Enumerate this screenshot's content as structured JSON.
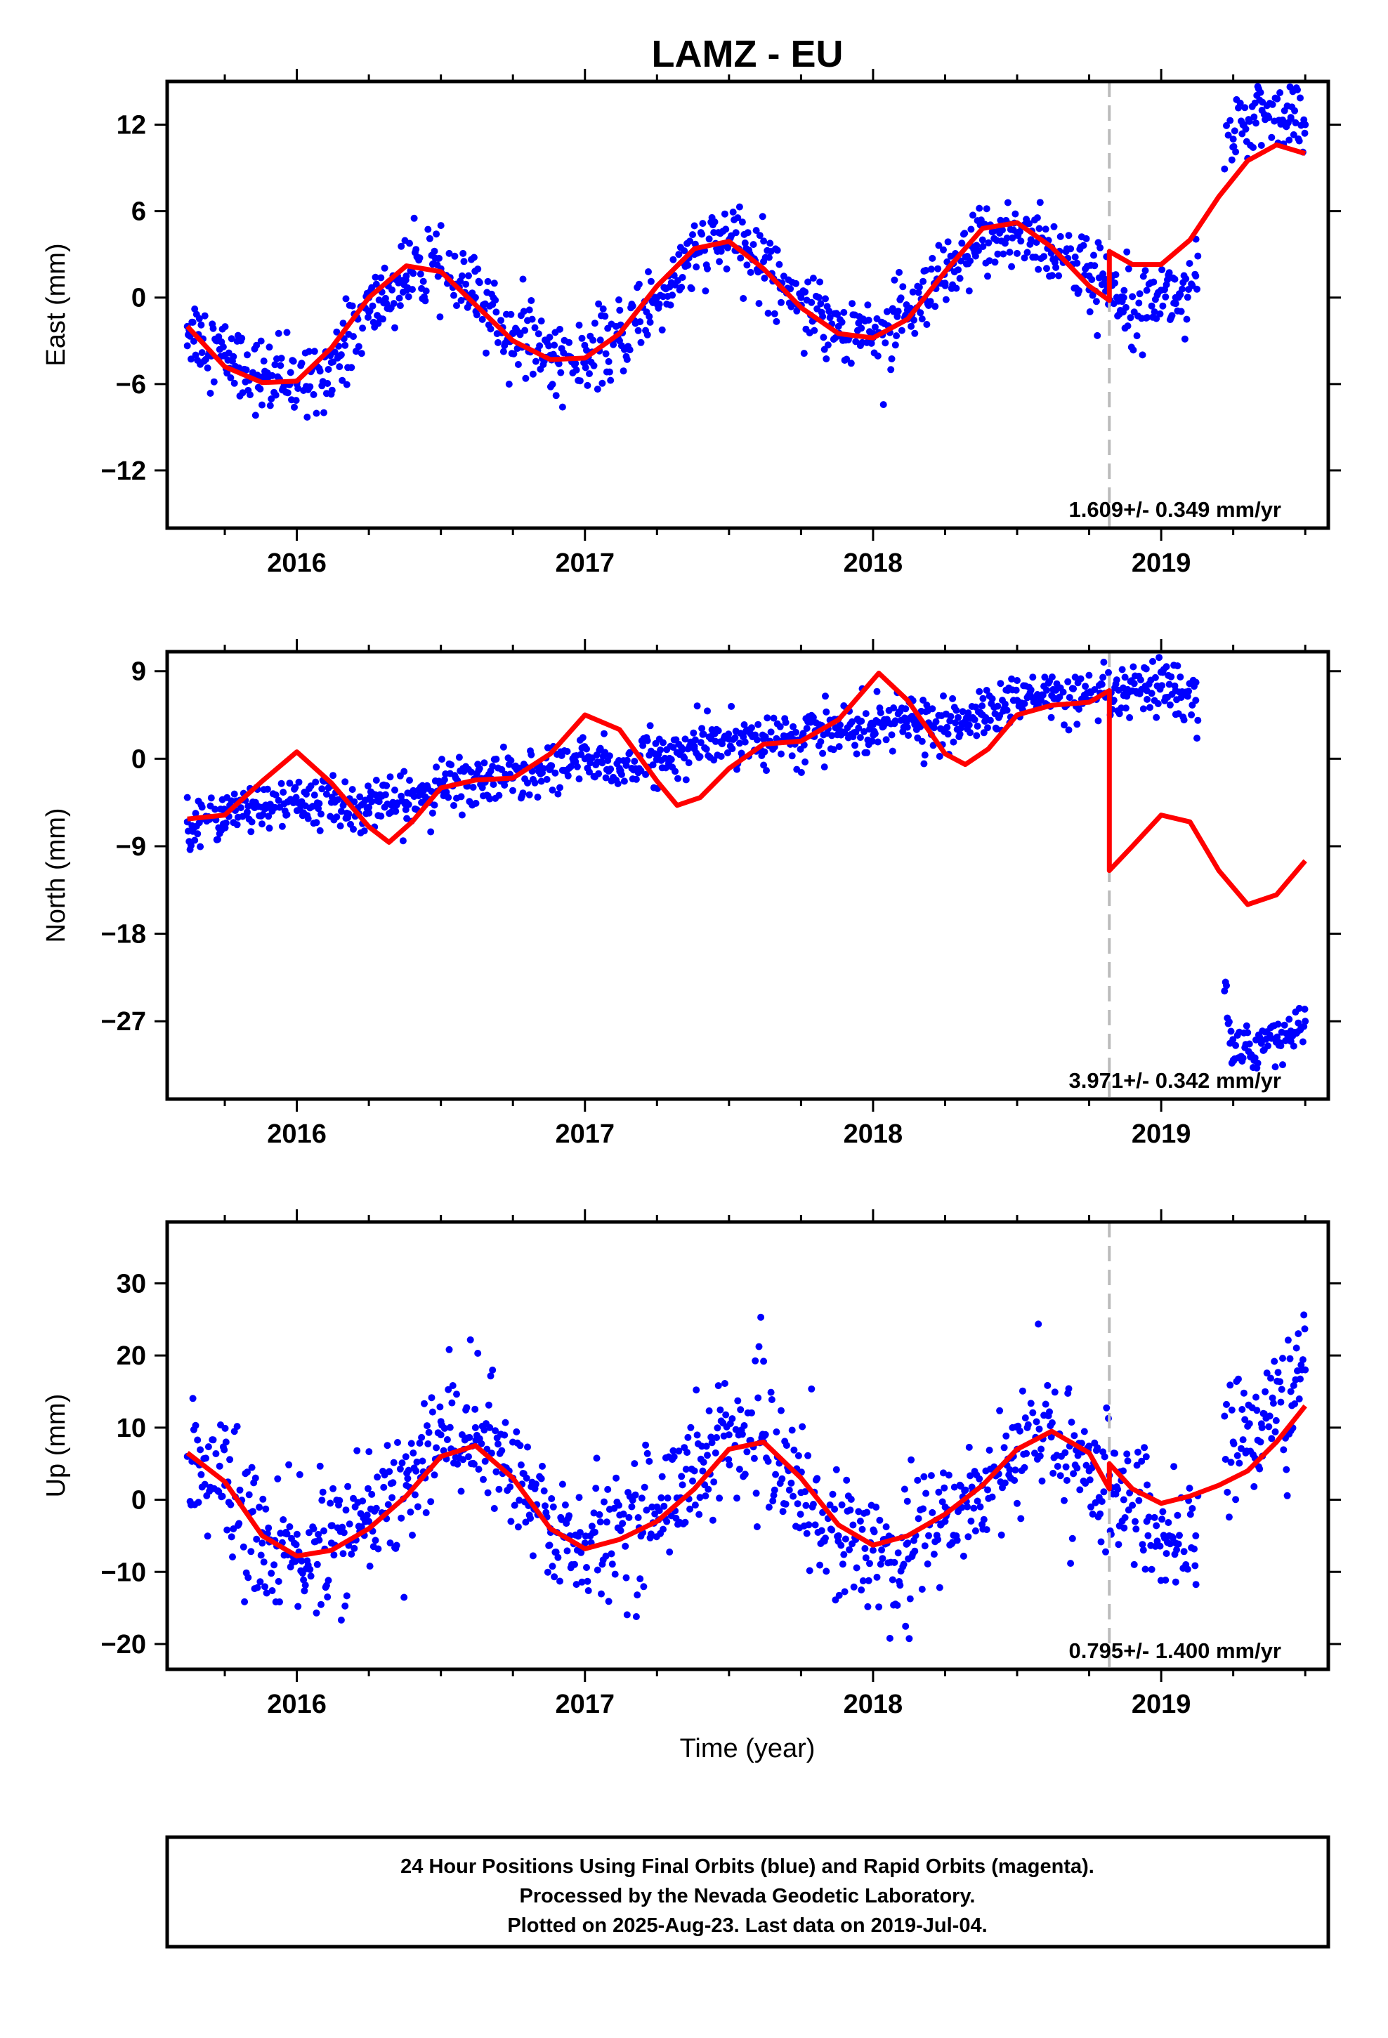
{
  "title": "LAMZ - EU",
  "colors": {
    "data": "#0000ff",
    "model": "#ff0000",
    "offset": "#bbbbbb",
    "frame": "#000000"
  },
  "xlabel": "Time (year)",
  "footer": [
    "24 Hour Positions Using Final Orbits (blue) and Rapid Orbits (magenta).",
    "Processed by the Nevada Geodetic Laboratory.",
    "Plotted on 2025-Aug-23. Last data on 2019-Jul-04."
  ],
  "chart_data": [
    {
      "type": "scatter",
      "name": "east",
      "ylabel": "East (mm)",
      "xlim": [
        2015.55,
        2019.58
      ],
      "ylim": [
        -16,
        15
      ],
      "x_ticks": [
        2016,
        2017,
        2018,
        2019
      ],
      "y_ticks": [
        -12,
        -6,
        0,
        6,
        12
      ],
      "y_tick_labels": [
        "−12",
        "−6",
        "0",
        "6",
        "12"
      ],
      "offset_epoch": 2018.82,
      "rate_label": "1.609+/- 0.349 mm/yr",
      "data": {
        "x": [
          2015.62,
          2015.75,
          2015.88,
          2016.0,
          2016.12,
          2016.25,
          2016.38,
          2016.5,
          2016.62,
          2016.75,
          2016.88,
          2017.0,
          2017.12,
          2017.25,
          2017.38,
          2017.5,
          2017.62,
          2017.75,
          2017.88,
          2018.0,
          2018.12,
          2018.25,
          2018.38,
          2018.5,
          2018.62,
          2018.75,
          2018.87,
          2018.95,
          2019.05,
          2019.12,
          2019.25,
          2019.35,
          2019.45,
          2019.5
        ],
        "y": [
          -2,
          -4,
          -5.5,
          -6,
          -4.5,
          -1,
          1.5,
          2,
          0,
          -2.5,
          -4,
          -4.5,
          -3,
          0,
          3,
          4,
          2.5,
          0,
          -2,
          -2.5,
          -1.5,
          1,
          4,
          4.5,
          3.5,
          1.5,
          0,
          0.5,
          0,
          1.5,
          11,
          13,
          12.5,
          12
        ]
      },
      "model": {
        "x": [
          2015.62,
          2015.75,
          2015.88,
          2016.0,
          2016.12,
          2016.25,
          2016.38,
          2016.5,
          2016.62,
          2016.75,
          2016.88,
          2017.0,
          2017.12,
          2017.25,
          2017.38,
          2017.5,
          2017.62,
          2017.75,
          2017.88,
          2018.0,
          2018.12,
          2018.25,
          2018.38,
          2018.5,
          2018.62,
          2018.75,
          2018.82,
          2018.82,
          2018.9,
          2019.0,
          2019.1,
          2019.2,
          2019.3,
          2019.4,
          2019.5
        ],
        "y": [
          -2,
          -4.8,
          -5.9,
          -5.8,
          -3.5,
          0,
          2.2,
          1.8,
          -0.5,
          -3,
          -4.3,
          -4.2,
          -2.5,
          0.8,
          3.4,
          3.9,
          2,
          -0.7,
          -2.5,
          -2.8,
          -1.5,
          1.8,
          4.8,
          5.2,
          3.5,
          0.8,
          -0.2,
          3.2,
          2.3,
          2.3,
          4,
          7,
          9.5,
          10.6,
          10
        ]
      }
    },
    {
      "type": "scatter",
      "name": "north",
      "ylabel": "North (mm)",
      "xlim": [
        2015.55,
        2019.58
      ],
      "ylim": [
        -35,
        11
      ],
      "x_ticks": [
        2016,
        2017,
        2018,
        2019
      ],
      "y_ticks": [
        -27,
        -18,
        -9,
        0,
        9
      ],
      "y_tick_labels": [
        "−27",
        "−18",
        "−9",
        "0",
        "9"
      ],
      "offset_epoch": 2018.82,
      "rate_label": "3.971+/- 0.342 mm/yr",
      "data": {
        "x": [
          2015.62,
          2015.75,
          2015.88,
          2016.0,
          2016.12,
          2016.25,
          2016.38,
          2016.5,
          2016.62,
          2016.75,
          2016.88,
          2017.0,
          2017.12,
          2017.25,
          2017.38,
          2017.5,
          2017.62,
          2017.75,
          2017.88,
          2018.0,
          2018.12,
          2018.25,
          2018.38,
          2018.5,
          2018.62,
          2018.75,
          2018.87,
          2018.95,
          2019.05,
          2019.12,
          2019.25,
          2019.35,
          2019.45,
          2019.5
        ],
        "y": [
          -6.5,
          -5.5,
          -5,
          -4.5,
          -4.5,
          -5,
          -4.5,
          -3,
          -2,
          -2,
          -1,
          0,
          -1,
          0,
          1,
          2,
          2,
          2,
          3,
          3.5,
          4,
          3,
          4.5,
          6,
          6.5,
          6,
          6.5,
          7,
          7,
          6,
          -31,
          -29,
          -28,
          -27
        ]
      },
      "model": {
        "x": [
          2015.62,
          2015.75,
          2015.88,
          2016.0,
          2016.12,
          2016.25,
          2016.32,
          2016.4,
          2016.5,
          2016.62,
          2016.75,
          2016.88,
          2017.0,
          2017.12,
          2017.25,
          2017.32,
          2017.4,
          2017.5,
          2017.62,
          2017.75,
          2017.88,
          2018.02,
          2018.12,
          2018.25,
          2018.32,
          2018.4,
          2018.5,
          2018.62,
          2018.75,
          2018.82,
          2018.82,
          2018.9,
          2019.0,
          2019.1,
          2019.2,
          2019.3,
          2019.4,
          2019.5
        ],
        "y": [
          -6.2,
          -5.8,
          -2.3,
          0.7,
          -2.5,
          -7,
          -8.6,
          -6.5,
          -3,
          -2.2,
          -2,
          0.5,
          4.5,
          3,
          -2.3,
          -4.8,
          -4,
          -1,
          1.5,
          1.8,
          4,
          8.8,
          6,
          0.5,
          -0.6,
          1,
          4.5,
          5.5,
          5.8,
          7,
          -11.5,
          -9,
          -5.8,
          -6.5,
          -11.5,
          -15,
          -14,
          -10.5
        ]
      }
    },
    {
      "type": "scatter",
      "name": "up",
      "ylabel": "Up (mm)",
      "xlim": [
        2015.55,
        2019.58
      ],
      "ylim": [
        -23.5,
        38.5
      ],
      "x_ticks": [
        2016,
        2017,
        2018,
        2019
      ],
      "y_ticks": [
        -20,
        -10,
        0,
        10,
        20,
        30
      ],
      "y_tick_labels": [
        "−20",
        "−10",
        "0",
        "10",
        "20",
        "30"
      ],
      "offset_epoch": 2018.82,
      "rate_label": "0.795+/- 1.400 mm/yr",
      "data": {
        "x": [
          2015.62,
          2015.75,
          2015.88,
          2016.0,
          2016.12,
          2016.25,
          2016.38,
          2016.5,
          2016.62,
          2016.75,
          2016.88,
          2017.0,
          2017.12,
          2017.25,
          2017.38,
          2017.5,
          2017.62,
          2017.75,
          2017.88,
          2018.0,
          2018.12,
          2018.25,
          2018.38,
          2018.5,
          2018.62,
          2018.75,
          2018.87,
          2018.95,
          2019.05,
          2019.12,
          2019.25,
          2019.35,
          2019.45,
          2019.5
        ],
        "y": [
          6,
          2,
          -6,
          -8,
          -6,
          -3,
          2,
          9,
          10,
          3,
          -4,
          -6,
          -4,
          -1,
          4,
          9,
          8,
          1,
          -5,
          -7,
          -6,
          -3,
          2,
          7,
          9,
          4,
          0,
          -3,
          -6,
          -5,
          8,
          10,
          15,
          18
        ]
      },
      "model": {
        "x": [
          2015.62,
          2015.75,
          2015.88,
          2016.0,
          2016.12,
          2016.25,
          2016.38,
          2016.5,
          2016.62,
          2016.75,
          2016.88,
          2017.0,
          2017.12,
          2017.25,
          2017.38,
          2017.5,
          2017.62,
          2017.75,
          2017.88,
          2018.0,
          2018.12,
          2018.25,
          2018.38,
          2018.5,
          2018.62,
          2018.75,
          2018.82,
          2018.82,
          2018.9,
          2019.0,
          2019.1,
          2019.2,
          2019.3,
          2019.4,
          2019.5
        ],
        "y": [
          6.5,
          2.5,
          -5,
          -7.8,
          -7,
          -4,
          0.5,
          6,
          7.5,
          3,
          -4,
          -6.8,
          -5.5,
          -3,
          1.5,
          7,
          8,
          3,
          -3.5,
          -6.3,
          -5,
          -2,
          2,
          7,
          9.5,
          6.5,
          1.5,
          5,
          1.5,
          -0.5,
          0.5,
          2,
          4,
          8,
          13
        ]
      }
    }
  ]
}
